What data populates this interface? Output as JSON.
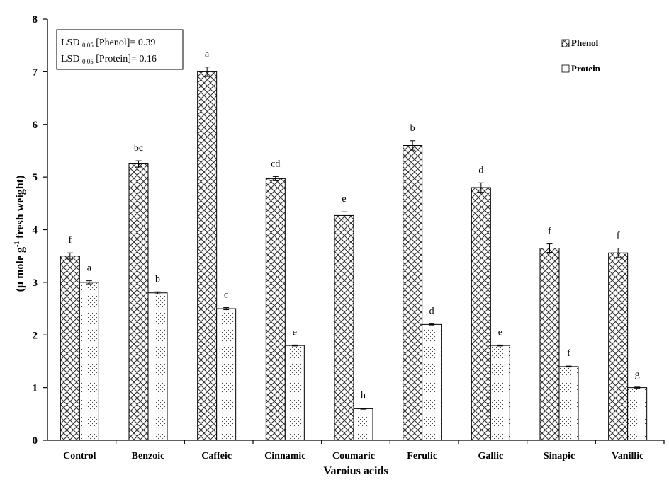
{
  "chart_data": {
    "type": "bar",
    "title": "",
    "xlabel": "Varoius acids",
    "ylabel_main": "(μ mole g",
    "ylabel_sup": "-1",
    "ylabel_tail": " fresh weight)",
    "ylim": [
      0,
      8
    ],
    "yticks": [
      "0",
      "1",
      "2",
      "3",
      "4",
      "5",
      "6",
      "7",
      "8"
    ],
    "categories": [
      "Control",
      "Benzoic",
      "Caffeic",
      "Cinnamic",
      "Coumaric",
      "Ferulic",
      "Gallic",
      "Sinapic",
      "Vanillic"
    ],
    "series": [
      {
        "name": "Phenol",
        "values": [
          3.5,
          5.25,
          7.0,
          4.97,
          4.27,
          5.6,
          4.8,
          3.65,
          3.56
        ],
        "errors": [
          0.06,
          0.06,
          0.09,
          0.04,
          0.07,
          0.09,
          0.09,
          0.08,
          0.09
        ],
        "letters": [
          "f",
          "bc",
          "a",
          "cd",
          "e",
          "b",
          "d",
          "f",
          "f"
        ]
      },
      {
        "name": "Protein",
        "values": [
          3.0,
          2.8,
          2.5,
          1.8,
          0.6,
          2.2,
          1.8,
          1.4,
          1.0
        ],
        "errors": [
          0.03,
          0.02,
          0.02,
          0.01,
          0.01,
          0.01,
          0.01,
          0.01,
          0.01
        ],
        "letters": [
          "a",
          "b",
          "c",
          "e",
          "h",
          "d",
          "e",
          "f",
          "g"
        ]
      }
    ],
    "lsd": [
      {
        "prefix": "LSD ",
        "sub": "0.05",
        "bracket": " [Phenol]",
        "value": "= 0.39"
      },
      {
        "prefix": "LSD ",
        "sub": "0.05",
        "bracket": " [Protein]",
        "value": "= 0.16"
      }
    ],
    "legend_position": "top-right"
  }
}
